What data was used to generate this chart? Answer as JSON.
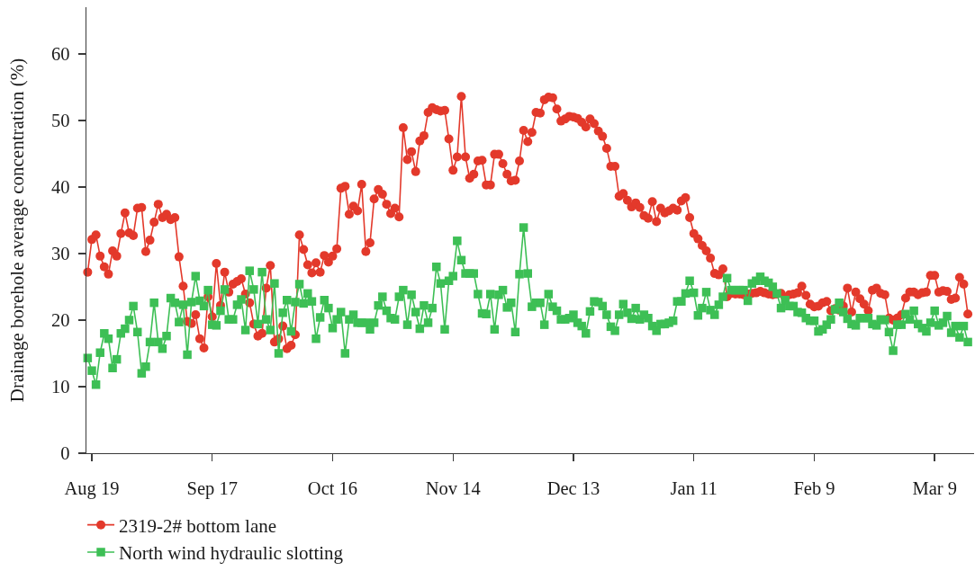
{
  "chart_data": {
    "type": "line",
    "ylabel": "Drainage borehole average concentration (%)",
    "categories": [
      null,
      "Aug 19",
      null,
      null,
      null,
      null,
      null,
      null,
      null,
      null,
      null,
      null,
      null,
      null,
      null,
      null,
      null,
      null,
      null,
      null,
      null,
      null,
      null,
      null,
      null,
      null,
      null,
      null,
      null,
      null,
      "Sep 17",
      null,
      null,
      null,
      null,
      null,
      null,
      null,
      null,
      null,
      null,
      null,
      null,
      null,
      null,
      null,
      null,
      null,
      null,
      null,
      null,
      null,
      null,
      null,
      null,
      null,
      null,
      null,
      null,
      "Oct 16",
      null,
      null,
      null,
      null,
      null,
      null,
      null,
      null,
      null,
      null,
      null,
      null,
      null,
      null,
      null,
      null,
      null,
      null,
      null,
      null,
      null,
      null,
      null,
      null,
      null,
      null,
      null,
      null,
      "Nov 14",
      null,
      null,
      null,
      null,
      null,
      null,
      null,
      null,
      null,
      null,
      null,
      null,
      null,
      null,
      null,
      null,
      null,
      null,
      null,
      null,
      null,
      null,
      null,
      null,
      null,
      null,
      null,
      null,
      "Dec 13",
      null,
      null,
      null,
      null,
      null,
      null,
      null,
      null,
      null,
      null,
      null,
      null,
      null,
      null,
      null,
      null,
      null,
      null,
      null,
      null,
      null,
      null,
      null,
      null,
      null,
      null,
      null,
      null,
      "Jan 11",
      null,
      null,
      null,
      null,
      null,
      null,
      null,
      null,
      null,
      null,
      null,
      null,
      null,
      null,
      null,
      null,
      null,
      null,
      null,
      null,
      null,
      null,
      null,
      null,
      null,
      null,
      null,
      null,
      "Feb 9",
      null,
      null,
      null,
      null,
      null,
      null,
      null,
      null,
      null,
      null,
      null,
      null,
      null,
      null,
      null,
      null,
      null,
      null,
      null,
      null,
      null,
      null,
      null,
      null,
      null,
      null,
      null,
      null,
      "Mar 9",
      null,
      null,
      null,
      null,
      null,
      null,
      null,
      null
    ],
    "series": [
      {
        "name": "2319-2# bottom lane",
        "color": "#e3392b",
        "marker": "circle",
        "values": [
          27.2,
          32.1,
          32.8,
          29.6,
          28.0,
          26.9,
          30.4,
          29.6,
          33.0,
          36.1,
          33.1,
          32.7,
          36.8,
          36.9,
          30.3,
          32.0,
          34.7,
          37.4,
          35.4,
          35.9,
          35.1,
          35.4,
          29.5,
          25.1,
          19.8,
          19.5,
          20.8,
          17.2,
          15.8,
          23.5,
          20.5,
          28.5,
          22.2,
          27.2,
          24.2,
          25.4,
          25.8,
          26.2,
          23.9,
          22.6,
          19.4,
          17.6,
          18.0,
          24.8,
          28.2,
          16.7,
          17.2,
          19.1,
          15.7,
          16.2,
          17.8,
          32.8,
          30.6,
          28.3,
          27.1,
          28.6,
          27.2,
          29.7,
          28.7,
          29.6,
          30.7,
          39.8,
          40.1,
          35.9,
          37.1,
          36.4,
          40.4,
          30.3,
          31.6,
          38.2,
          39.6,
          38.9,
          37.4,
          36.0,
          36.8,
          35.5,
          48.9,
          44.1,
          45.3,
          42.3,
          46.9,
          47.7,
          51.2,
          51.9,
          51.6,
          51.4,
          51.5,
          47.2,
          42.5,
          44.5,
          53.6,
          44.5,
          41.3,
          41.9,
          43.9,
          44.0,
          40.3,
          40.3,
          44.9,
          44.9,
          43.5,
          41.9,
          40.9,
          41.0,
          43.9,
          48.5,
          46.8,
          48.2,
          51.2,
          51.1,
          53.1,
          53.5,
          53.4,
          51.7,
          49.9,
          50.2,
          50.6,
          50.5,
          50.3,
          49.7,
          49.0,
          50.2,
          49.5,
          48.4,
          47.6,
          45.8,
          43.1,
          43.1,
          38.6,
          39.0,
          38.0,
          37.0,
          37.6,
          36.9,
          35.7,
          35.3,
          37.8,
          34.8,
          36.8,
          36.1,
          36.4,
          36.8,
          36.5,
          37.9,
          38.4,
          35.4,
          33.0,
          32.2,
          31.2,
          30.4,
          29.3,
          27.0,
          26.8,
          27.7,
          23.5,
          24.0,
          23.9,
          23.9,
          23.8,
          23.9,
          24.0,
          24.1,
          24.3,
          24.1,
          23.9,
          23.8,
          23.9,
          24.0,
          23.4,
          23.8,
          23.9,
          24.1,
          25.1,
          23.7,
          22.4,
          22.0,
          22.1,
          22.6,
          22.8,
          21.4,
          21.7,
          21.5,
          22.1,
          24.8,
          21.2,
          24.2,
          23.2,
          22.4,
          21.4,
          24.5,
          24.8,
          24.0,
          23.8,
          20.3,
          20.0,
          20.3,
          20.8,
          23.3,
          24.2,
          24.2,
          23.8,
          24.1,
          24.2,
          26.7,
          26.7,
          24.2,
          24.4,
          24.3,
          23.1,
          23.3,
          26.4,
          25.4,
          20.9
        ]
      },
      {
        "name": "North wind hydraulic slotting",
        "color": "#3dbf55",
        "marker": "square",
        "values": [
          14.3,
          12.4,
          10.3,
          15.1,
          18.0,
          17.2,
          12.8,
          14.1,
          18.0,
          18.7,
          20.0,
          22.1,
          18.2,
          12.0,
          13.0,
          16.7,
          22.6,
          16.7,
          15.7,
          17.6,
          23.3,
          22.6,
          19.7,
          22.3,
          14.8,
          22.7,
          26.6,
          22.9,
          22.1,
          24.5,
          19.3,
          19.2,
          21.4,
          24.6,
          20.1,
          20.1,
          22.3,
          23.1,
          18.5,
          27.4,
          24.6,
          19.4,
          27.2,
          20.1,
          18.5,
          25.5,
          15.0,
          21.1,
          23.0,
          18.3,
          22.7,
          25.4,
          22.5,
          24.0,
          22.8,
          17.2,
          20.4,
          23.0,
          21.8,
          18.8,
          20.1,
          21.2,
          15.0,
          20.1,
          20.8,
          19.6,
          19.6,
          19.6,
          18.6,
          19.6,
          22.2,
          23.5,
          21.4,
          20.3,
          20.1,
          23.5,
          24.5,
          19.3,
          23.8,
          21.2,
          18.7,
          22.2,
          19.6,
          21.8,
          28.0,
          25.5,
          18.6,
          25.9,
          26.6,
          31.9,
          29.0,
          27.0,
          27.0,
          27.0,
          23.9,
          21.0,
          20.9,
          23.9,
          18.6,
          23.8,
          24.5,
          21.9,
          22.6,
          18.2,
          26.9,
          33.9,
          27.0,
          22.0,
          22.6,
          22.6,
          19.3,
          23.9,
          22.0,
          21.4,
          20.1,
          20.1,
          20.3,
          20.8,
          19.6,
          19.1,
          18.0,
          21.3,
          22.8,
          22.7,
          22.1,
          20.8,
          19.0,
          18.4,
          20.8,
          22.4,
          21.1,
          20.2,
          21.8,
          20.1,
          20.8,
          20.3,
          19.1,
          18.4,
          19.4,
          19.4,
          19.6,
          19.9,
          22.8,
          22.8,
          24.0,
          25.9,
          24.1,
          20.7,
          21.8,
          24.2,
          21.5,
          20.8,
          22.3,
          23.5,
          26.3,
          24.5,
          24.5,
          24.5,
          24.5,
          22.9,
          25.5,
          25.9,
          26.5,
          25.9,
          25.6,
          25.0,
          24.0,
          21.8,
          23.0,
          22.1,
          22.1,
          21.2,
          21.1,
          20.3,
          19.9,
          19.9,
          18.3,
          18.6,
          19.3,
          20.1,
          21.6,
          22.6,
          21.2,
          20.2,
          19.4,
          19.2,
          20.3,
          20.3,
          20.3,
          19.4,
          19.2,
          20.1,
          20.0,
          18.2,
          15.4,
          19.3,
          19.3,
          20.9,
          20.1,
          21.4,
          19.4,
          18.8,
          18.3,
          19.6,
          21.4,
          19.2,
          19.6,
          20.6,
          18.1,
          19.1,
          17.4,
          19.1,
          16.7
        ]
      }
    ],
    "ylim": [
      0,
      67
    ],
    "yticks": [
      0,
      10,
      20,
      30,
      40,
      50,
      60
    ],
    "grid": false,
    "legend": "bottom left"
  }
}
